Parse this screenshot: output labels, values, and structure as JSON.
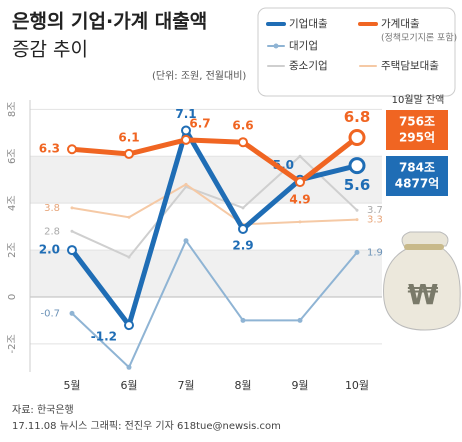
{
  "chart_data": {
    "type": "line",
    "title_lines": [
      "은행의 기업·가계 대출액",
      "증감 추이"
    ],
    "unit": "(단위: 조원, 전월대비)",
    "categories": [
      "5월",
      "6월",
      "7월",
      "8월",
      "9월",
      "10월"
    ],
    "ylim": [
      -3.2,
      8.4
    ],
    "yticks": [
      {
        "value": 8,
        "label": "8조"
      },
      {
        "value": 6,
        "label": "6조"
      },
      {
        "value": 4,
        "label": "4조"
      },
      {
        "value": 2,
        "label": "2조"
      },
      0,
      {
        "value": -2,
        "label": "-2조"
      }
    ],
    "series": [
      {
        "name": "기업대출",
        "color": "#1f6db5",
        "values": [
          2.0,
          -1.2,
          7.1,
          2.9,
          5.0,
          5.6
        ],
        "value_labels": [
          "2.0",
          "-1.2",
          "7.1",
          "2.9",
          "5.0",
          "5.6"
        ]
      },
      {
        "name": "가계대출",
        "note": "(정책모기지론 포함)",
        "color": "#f06522",
        "values": [
          6.3,
          6.1,
          6.7,
          6.6,
          4.9,
          6.8
        ],
        "value_labels": [
          "6.3",
          "6.1",
          "6.7",
          "6.6",
          "4.9",
          "6.8"
        ]
      },
      {
        "name": "대기업",
        "color": "#8fb4d4",
        "values": [
          -0.7,
          -3.0,
          2.4,
          -1.0,
          -1.0,
          1.9
        ],
        "value_labels": [
          "-0.7",
          null,
          null,
          null,
          null,
          "1.9"
        ]
      },
      {
        "name": "중소기업",
        "color": "#cfcfcf",
        "values": [
          2.8,
          1.7,
          4.7,
          3.8,
          6.0,
          3.7
        ],
        "value_labels": [
          "2.8",
          null,
          null,
          null,
          null,
          "3.7"
        ]
      },
      {
        "name": "주택담보대출",
        "color": "#f5c9a5",
        "values": [
          3.8,
          3.4,
          4.8,
          3.1,
          3.2,
          3.3
        ],
        "value_labels": [
          "3.8",
          null,
          null,
          null,
          null,
          "3.3"
        ]
      }
    ],
    "balance": {
      "title": "10월말 잔액",
      "household": [
        "756조",
        "295억"
      ],
      "corporate": [
        "784조",
        "4877억"
      ]
    },
    "source": "자료: 한국은행",
    "credit": "17.11.08  뉴시스 그래픽: 전진우 기자  618tue@newsis.com"
  }
}
